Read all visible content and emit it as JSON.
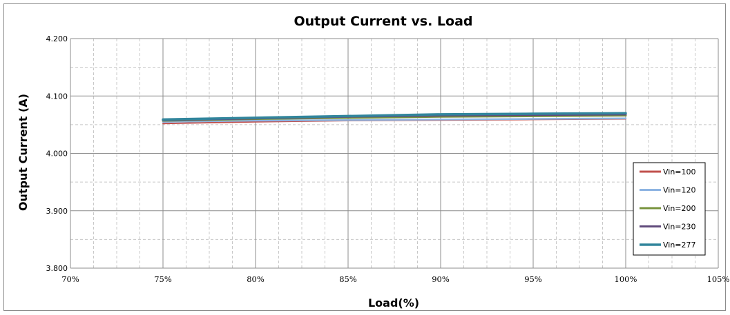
{
  "chart_data": {
    "type": "line",
    "title": "Output Current vs. Load",
    "xlabel": "Load(%)",
    "ylabel": "Output Current (A)",
    "xlim": [
      70,
      105
    ],
    "ylim": [
      3.8,
      4.2
    ],
    "x_ticks": [
      "70%",
      "75%",
      "80%",
      "85%",
      "90%",
      "95%",
      "100%",
      "105%"
    ],
    "y_ticks": [
      "4.200",
      "4.100",
      "4.000",
      "3.900",
      "3.800"
    ],
    "grid": "major solid, minor dashed",
    "legend_position": "right",
    "x": [
      75,
      80,
      85,
      90,
      95,
      100
    ],
    "series": [
      {
        "name": "Vin=100",
        "color": "#c0504d",
        "values": [
          4.052,
          4.055,
          4.057,
          4.058,
          4.059,
          4.06
        ]
      },
      {
        "name": "Vin=120",
        "color": "#8db4e2",
        "values": [
          4.055,
          4.057,
          4.058,
          4.059,
          4.06,
          4.061
        ]
      },
      {
        "name": "Vin=200",
        "color": "#77933c",
        "values": [
          4.057,
          4.06,
          4.062,
          4.064,
          4.065,
          4.066
        ]
      },
      {
        "name": "Vin=230",
        "color": "#604a7b",
        "values": [
          4.058,
          4.061,
          4.064,
          4.066,
          4.067,
          4.068
        ]
      },
      {
        "name": "Vin=277",
        "color": "#31859c",
        "values": [
          4.059,
          4.062,
          4.065,
          4.068,
          4.069,
          4.07
        ]
      }
    ]
  }
}
